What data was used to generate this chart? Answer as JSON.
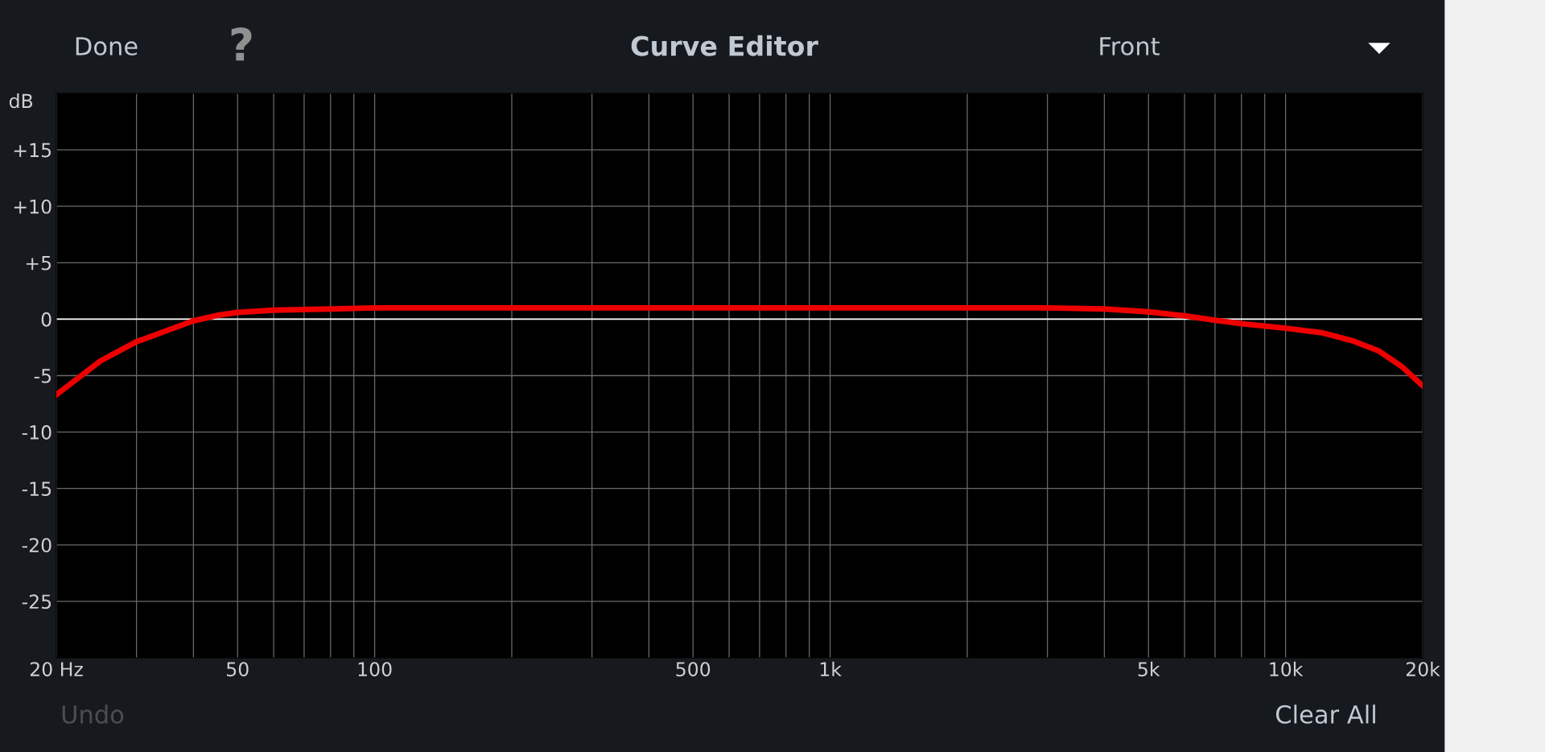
{
  "chart_data": {
    "type": "line",
    "title": "Curve Editor",
    "ylabel": "dB",
    "annotations": [
      "Done",
      "?",
      "Front",
      "Undo",
      "Clear All"
    ],
    "x": [
      20,
      25,
      30,
      35,
      40,
      45,
      50,
      60,
      80,
      100,
      200,
      500,
      1000,
      2000,
      3000,
      4000,
      5000,
      6000,
      7000,
      8000,
      10000,
      12000,
      14000,
      16000,
      18000,
      20000
    ],
    "series": [
      {
        "color": "#ee0000",
        "values": [
          -6.7,
          -3.7,
          -2.0,
          -1.0,
          -0.15,
          0.33,
          0.6,
          0.8,
          0.9,
          1.0,
          1.0,
          1.0,
          1.0,
          1.0,
          1.0,
          0.9,
          0.65,
          0.3,
          -0.1,
          -0.4,
          -0.8,
          -1.2,
          -1.9,
          -2.8,
          -4.2,
          -5.9
        ]
      }
    ],
    "log": "x",
    "xlim": [
      20,
      20000
    ],
    "xticks": [
      {
        "value": 20,
        "label": "20 Hz"
      },
      {
        "value": 30,
        "label": null
      },
      {
        "value": 40,
        "label": null
      },
      50,
      {
        "value": 60,
        "label": null
      },
      {
        "value": 70,
        "label": null
      },
      {
        "value": 80,
        "label": null
      },
      {
        "value": 90,
        "label": null
      },
      100,
      {
        "value": 200,
        "label": null
      },
      {
        "value": 300,
        "label": null
      },
      {
        "value": 400,
        "label": null
      },
      500,
      {
        "value": 600,
        "label": null
      },
      {
        "value": 700,
        "label": null
      },
      {
        "value": 800,
        "label": null
      },
      {
        "value": 900,
        "label": null
      },
      {
        "value": 1000,
        "label": "1k"
      },
      {
        "value": 2000,
        "label": null
      },
      {
        "value": 3000,
        "label": null
      },
      {
        "value": 4000,
        "label": null
      },
      {
        "value": 5000,
        "label": "5k"
      },
      {
        "value": 6000,
        "label": null
      },
      {
        "value": 7000,
        "label": null
      },
      {
        "value": 8000,
        "label": null
      },
      {
        "value": 9000,
        "label": null
      },
      {
        "value": 10000,
        "label": "10k"
      },
      {
        "value": 20000,
        "label": "20k"
      }
    ],
    "ylim": [
      -30,
      20
    ],
    "yticks": [
      {
        "value": 15,
        "label": "+15"
      },
      {
        "value": 10,
        "label": "+10"
      },
      {
        "value": 5,
        "label": "+5"
      },
      0,
      -5,
      -10,
      -15,
      -20,
      -25
    ],
    "ref_lines": [
      {
        "axis": "y",
        "value": 0,
        "color": "#ffffff"
      }
    ],
    "grid": true,
    "marker": "none",
    "line_style": "solid",
    "legend": false
  }
}
